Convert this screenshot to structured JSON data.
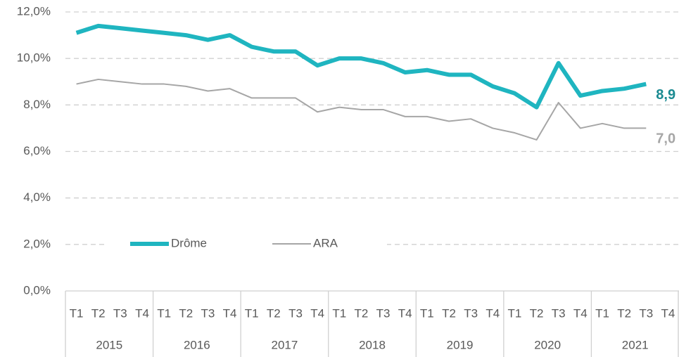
{
  "chart_data": {
    "type": "line",
    "categories": [
      "T1",
      "T2",
      "T3",
      "T4",
      "T1",
      "T2",
      "T3",
      "T4",
      "T1",
      "T2",
      "T3",
      "T4",
      "T1",
      "T2",
      "T3",
      "T4",
      "T1",
      "T2",
      "T3",
      "T4",
      "T1",
      "T2",
      "T3",
      "T4",
      "T1",
      "T2",
      "T3",
      "T4"
    ],
    "category_groups": [
      "2015",
      "2016",
      "2017",
      "2018",
      "2019",
      "2020",
      "2021"
    ],
    "series": [
      {
        "name": "Drôme",
        "color": "#1fb5c0",
        "label_color": "#1a8a91",
        "line_width": 6,
        "values": [
          11.1,
          11.4,
          11.3,
          11.2,
          11.1,
          11.0,
          10.8,
          11.0,
          10.5,
          10.3,
          10.3,
          9.7,
          10.0,
          10.0,
          9.8,
          9.4,
          9.5,
          9.3,
          9.3,
          8.8,
          8.5,
          7.9,
          9.8,
          8.4,
          8.6,
          8.7,
          8.9,
          null
        ],
        "value_labels": [
          null,
          null,
          null,
          null,
          null,
          null,
          null,
          null,
          null,
          null,
          null,
          null,
          null,
          null,
          null,
          null,
          null,
          null,
          null,
          null,
          null,
          null,
          null,
          null,
          null,
          null,
          "8,9",
          null
        ]
      },
      {
        "name": "ARA",
        "color": "#a6a6a6",
        "label_color": "#a6a6a6",
        "line_width": 2,
        "values": [
          8.9,
          9.1,
          9.0,
          8.9,
          8.9,
          8.8,
          8.6,
          8.7,
          8.3,
          8.3,
          8.3,
          7.7,
          7.9,
          7.8,
          7.8,
          7.5,
          7.5,
          7.3,
          7.4,
          7.0,
          6.8,
          6.5,
          8.1,
          7.0,
          7.2,
          7.0,
          7.0,
          null
        ],
        "value_labels": [
          null,
          null,
          null,
          null,
          null,
          null,
          null,
          null,
          null,
          null,
          null,
          null,
          null,
          null,
          null,
          null,
          null,
          null,
          null,
          null,
          null,
          null,
          null,
          null,
          null,
          null,
          "7,0",
          null
        ]
      }
    ],
    "ylim": [
      0,
      12
    ],
    "yticks": [
      {
        "value": 0,
        "label": "0,0%"
      },
      {
        "value": 2,
        "label": "2,0%"
      },
      {
        "value": 4,
        "label": "4,0%"
      },
      {
        "value": 6,
        "label": "6,0%"
      },
      {
        "value": 8,
        "label": "8,0%"
      },
      {
        "value": 10,
        "label": "10,0%"
      },
      {
        "value": 12,
        "label": "12,0%"
      }
    ],
    "grid": true
  }
}
